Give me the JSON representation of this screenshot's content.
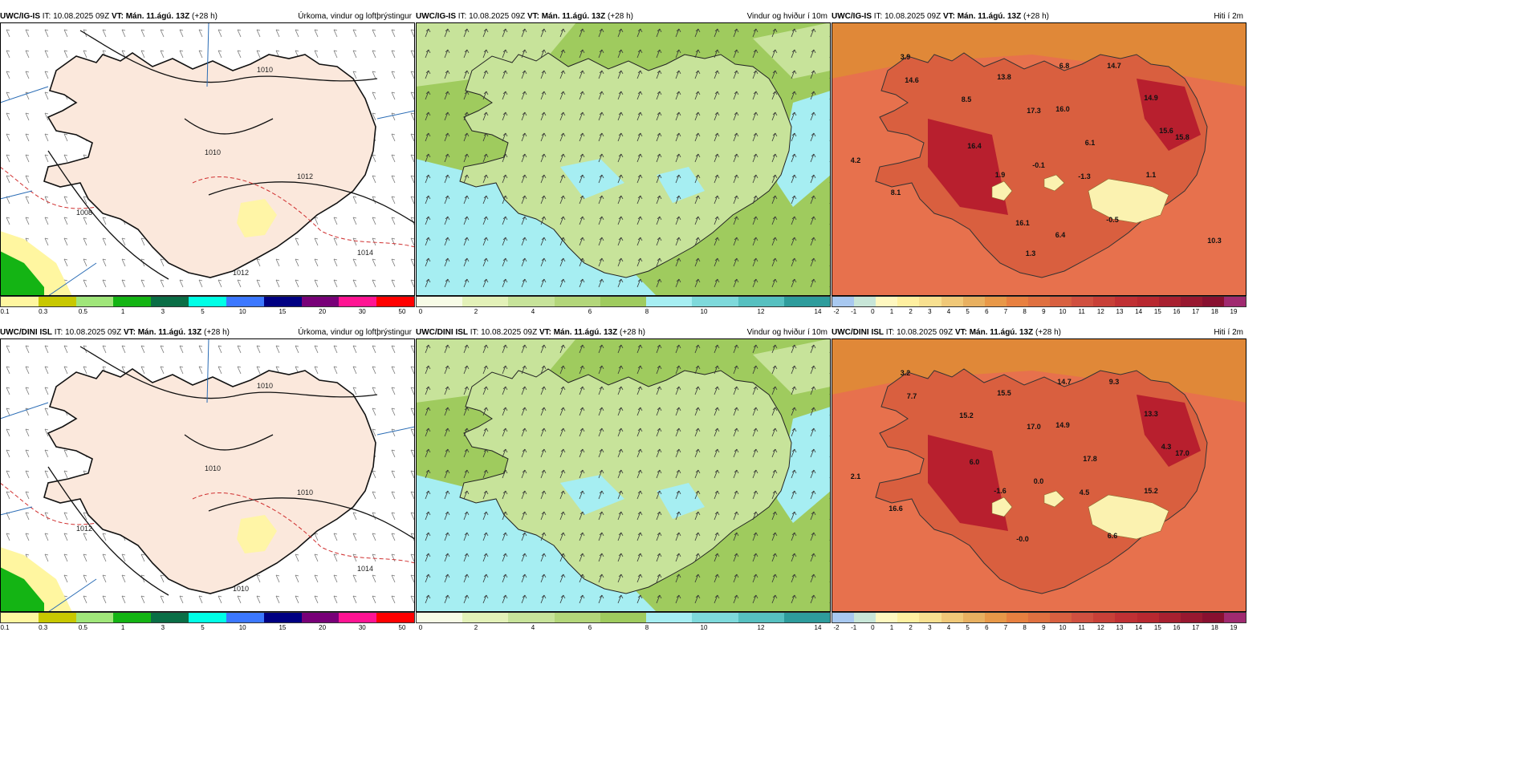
{
  "colors": {
    "land_precip": "#fbe8dc",
    "sea_precip": "#ffffff",
    "wind_light": "#c7e39a",
    "wind_mid": "#9fcb5e",
    "wind_high": "#a6eef2",
    "temp_warm": "#d95f3f",
    "temp_hot": "#b81f2e",
    "temp_sea": "#e7714d",
    "temp_cold": "#fbf2b0"
  },
  "rows": [
    {
      "model": "UWC/IG-IS",
      "it": "IT: 10.08.2025 09Z",
      "vt": "VT: Mán. 11.ágú. 13Z",
      "lead": "(+28 h)",
      "panels": {
        "precip_title": "Úrkoma, vindur og loftþrýstingur",
        "wind_title": "Vindur og hviður í 10m",
        "temp_title": "Hiti í 2m"
      },
      "isobars": [
        "1010",
        "1010",
        "1012",
        "1008",
        "1012",
        "1014"
      ],
      "temps": [
        {
          "v": "3.9"
        },
        {
          "v": "14.6"
        },
        {
          "v": "13.8"
        },
        {
          "v": "6.8"
        },
        {
          "v": "14.7"
        },
        {
          "v": "8.5"
        },
        {
          "v": "17.3"
        },
        {
          "v": "16.0"
        },
        {
          "v": "14.9"
        },
        {
          "v": "15.8"
        },
        {
          "v": "16.4"
        },
        {
          "v": "6.1"
        },
        {
          "v": "15.6"
        },
        {
          "v": "4.2"
        },
        {
          "v": "-0.1"
        },
        {
          "v": "1.9"
        },
        {
          "v": "-1.3"
        },
        {
          "v": "1.1"
        },
        {
          "v": "8.1"
        },
        {
          "v": "-0.5"
        },
        {
          "v": "16.1"
        },
        {
          "v": "6.4"
        },
        {
          "v": "10.3"
        },
        {
          "v": "1.3"
        }
      ]
    },
    {
      "model": "UWC/DINI ISL",
      "it": "IT: 10.08.2025 09Z",
      "vt": "VT: Mán. 11.ágú. 13Z",
      "lead": "(+28 h)",
      "panels": {
        "precip_title": "Úrkoma, vindur og loftþrýstingur",
        "wind_title": "Vindur og hviður í 10m",
        "temp_title": "Hiti í 2m"
      },
      "isobars": [
        "1010",
        "1010",
        "1010",
        "1012",
        "1010",
        "1014"
      ],
      "temps": [
        {
          "v": "3.2"
        },
        {
          "v": "7.7"
        },
        {
          "v": "15.5"
        },
        {
          "v": "14.7"
        },
        {
          "v": "9.3"
        },
        {
          "v": "15.2"
        },
        {
          "v": "17.0"
        },
        {
          "v": "14.9"
        },
        {
          "v": "13.3"
        },
        {
          "v": "17.0"
        },
        {
          "v": "6.0"
        },
        {
          "v": "17.8"
        },
        {
          "v": "4.3"
        },
        {
          "v": "2.1"
        },
        {
          "v": "0.0"
        },
        {
          "v": "-1.6"
        },
        {
          "v": "4.5"
        },
        {
          "v": "15.2"
        },
        {
          "v": "16.6"
        },
        {
          "v": "6.6"
        },
        {
          "v": "-0.0"
        }
      ]
    }
  ],
  "colorbars": {
    "precip": {
      "colors": [
        "#fff6a0",
        "#c8c800",
        "#a0e67a",
        "#14b414",
        "#0a6e46",
        "#00ffe6",
        "#3c78ff",
        "#000082",
        "#780078",
        "#ff1493",
        "#ff0000"
      ],
      "ticks": [
        "0.1",
        "0.3",
        "0.5",
        "1",
        "3",
        "5",
        "10",
        "15",
        "20",
        "30",
        "50"
      ]
    },
    "wind": {
      "colors": [
        "#f7fbe6",
        "#e3f1b8",
        "#c7e39a",
        "#b3d67a",
        "#9fcb5e",
        "#a6eef2",
        "#7ed9db",
        "#56c0c0",
        "#2e9c9c"
      ],
      "ticks": [
        "0",
        "2",
        "4",
        "6",
        "8",
        "10",
        "12",
        "14"
      ]
    },
    "temp": {
      "colors": [
        "#a8c8f0",
        "#c8e6d8",
        "#fff8c0",
        "#fff0a0",
        "#f8e090",
        "#f0c878",
        "#e8b060",
        "#e89848",
        "#e88040",
        "#e07040",
        "#d86040",
        "#d05040",
        "#c84038",
        "#c03034",
        "#b82830",
        "#a82030",
        "#981830",
        "#881030",
        "#a02a70"
      ],
      "ticks": [
        "-2",
        "-1",
        "0",
        "1",
        "2",
        "3",
        "4",
        "5",
        "6",
        "7",
        "8",
        "9",
        "10",
        "11",
        "12",
        "13",
        "14",
        "15",
        "16",
        "17",
        "18",
        "19"
      ]
    }
  }
}
